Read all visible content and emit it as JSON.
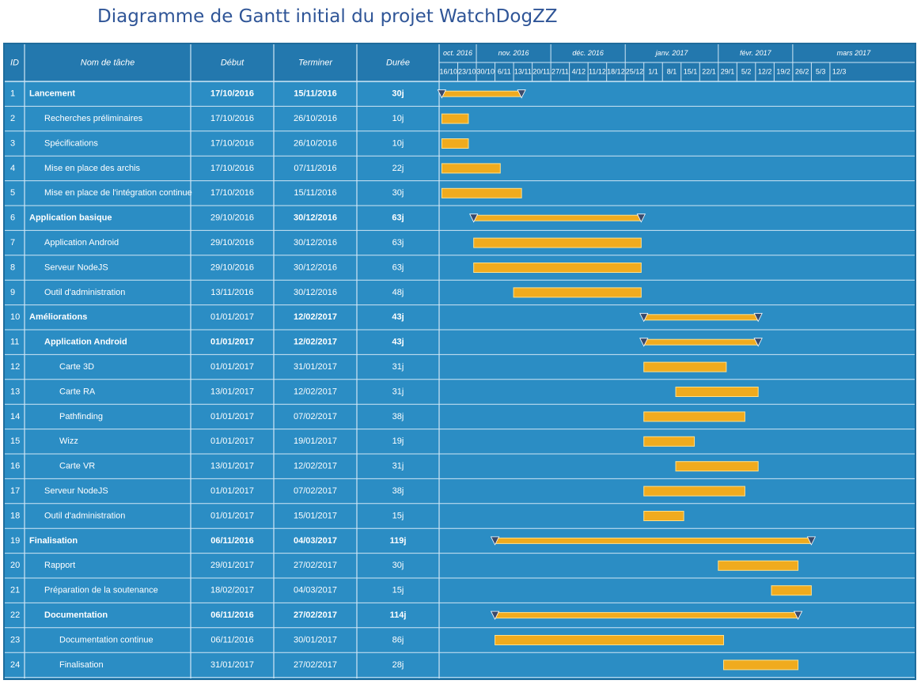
{
  "title": "Diagramme de Gantt initial du projet WatchDogZZ",
  "colors": {
    "background": "#2b8dc4",
    "header": "#2378ae",
    "gridline": "#cfe6f5",
    "text": "#ffffff",
    "bar": "#f0ab1e",
    "bar_border": "#ffe08a",
    "milestone": "#3b4a6b",
    "title": "#2f5597"
  },
  "columns": {
    "id": "ID",
    "name": "Nom de tâche",
    "start": "Début",
    "end": "Terminer",
    "duration": "Durée"
  },
  "chart_data": {
    "type": "gantt",
    "title": "Diagramme de Gantt initial du projet WatchDogZZ",
    "timeline_start": "2016-10-16",
    "timeline_end": "2017-03-19",
    "months": [
      {
        "label": "oct. 2016",
        "start": "2016-10-16"
      },
      {
        "label": "nov. 2016",
        "start": "2016-10-30"
      },
      {
        "label": "déc. 2016",
        "start": "2016-11-27"
      },
      {
        "label": "janv. 2017",
        "start": "2016-12-25"
      },
      {
        "label": "févr. 2017",
        "start": "2017-01-29"
      },
      {
        "label": "mars 2017",
        "start": "2017-02-26"
      }
    ],
    "week_ticks": [
      "16/10",
      "23/10",
      "30/10",
      "6/11",
      "13/11",
      "20/11",
      "27/11",
      "4/12",
      "11/12",
      "18/12",
      "25/12",
      "1/1",
      "8/1",
      "15/1",
      "22/1",
      "29/1",
      "5/2",
      "12/2",
      "19/2",
      "26/2",
      "5/3",
      "12/3"
    ],
    "tasks": [
      {
        "id": "1",
        "name": "Lancement",
        "start": "17/10/2016",
        "end": "15/11/2016",
        "duration": "30j",
        "level": 0,
        "summary": true,
        "bold_start": true
      },
      {
        "id": "2",
        "name": "Recherches préliminaires",
        "start": "17/10/2016",
        "end": "26/10/2016",
        "duration": "10j",
        "level": 1,
        "summary": false
      },
      {
        "id": "3",
        "name": "Spécifications",
        "start": "17/10/2016",
        "end": "26/10/2016",
        "duration": "10j",
        "level": 1,
        "summary": false
      },
      {
        "id": "4",
        "name": "Mise en place des archis",
        "start": "17/10/2016",
        "end": "07/11/2016",
        "duration": "22j",
        "level": 1,
        "summary": false
      },
      {
        "id": "5",
        "name": "Mise en place de l'intégration continue",
        "start": "17/10/2016",
        "end": "15/11/2016",
        "duration": "30j",
        "level": 1,
        "summary": false
      },
      {
        "id": "6",
        "name": "Application basique",
        "start": "29/10/2016",
        "end": "30/12/2016",
        "duration": "63j",
        "level": 0,
        "summary": true,
        "bold_start": false
      },
      {
        "id": "7",
        "name": "Application Android",
        "start": "29/10/2016",
        "end": "30/12/2016",
        "duration": "63j",
        "level": 1,
        "summary": false
      },
      {
        "id": "8",
        "name": "Serveur NodeJS",
        "start": "29/10/2016",
        "end": "30/12/2016",
        "duration": "63j",
        "level": 1,
        "summary": false
      },
      {
        "id": "9",
        "name": "Outil d'administration",
        "start": "13/11/2016",
        "end": "30/12/2016",
        "duration": "48j",
        "level": 1,
        "summary": false
      },
      {
        "id": "10",
        "name": "Améliorations",
        "start": "01/01/2017",
        "end": "12/02/2017",
        "duration": "43j",
        "level": 0,
        "summary": true,
        "bold_start": false
      },
      {
        "id": "11",
        "name": "Application Android",
        "start": "01/01/2017",
        "end": "12/02/2017",
        "duration": "43j",
        "level": 1,
        "summary": true,
        "bold_start": true
      },
      {
        "id": "12",
        "name": "Carte 3D",
        "start": "01/01/2017",
        "end": "31/01/2017",
        "duration": "31j",
        "level": 2,
        "summary": false
      },
      {
        "id": "13",
        "name": "Carte RA",
        "start": "13/01/2017",
        "end": "12/02/2017",
        "duration": "31j",
        "level": 2,
        "summary": false
      },
      {
        "id": "14",
        "name": "Pathfinding",
        "start": "01/01/2017",
        "end": "07/02/2017",
        "duration": "38j",
        "level": 2,
        "summary": false
      },
      {
        "id": "15",
        "name": "Wizz",
        "start": "01/01/2017",
        "end": "19/01/2017",
        "duration": "19j",
        "level": 2,
        "summary": false
      },
      {
        "id": "16",
        "name": "Carte VR",
        "start": "13/01/2017",
        "end": "12/02/2017",
        "duration": "31j",
        "level": 2,
        "summary": false
      },
      {
        "id": "17",
        "name": "Serveur NodeJS",
        "start": "01/01/2017",
        "end": "07/02/2017",
        "duration": "38j",
        "level": 1,
        "summary": false
      },
      {
        "id": "18",
        "name": "Outil d'administration",
        "start": "01/01/2017",
        "end": "15/01/2017",
        "duration": "15j",
        "level": 1,
        "summary": false
      },
      {
        "id": "19",
        "name": "Finalisation",
        "start": "06/11/2016",
        "end": "04/03/2017",
        "duration": "119j",
        "level": 0,
        "summary": true,
        "bold_start": true
      },
      {
        "id": "20",
        "name": "Rapport",
        "start": "29/01/2017",
        "end": "27/02/2017",
        "duration": "30j",
        "level": 1,
        "summary": false
      },
      {
        "id": "21",
        "name": "Préparation de la soutenance",
        "start": "18/02/2017",
        "end": "04/03/2017",
        "duration": "15j",
        "level": 1,
        "summary": false
      },
      {
        "id": "22",
        "name": "Documentation",
        "start": "06/11/2016",
        "end": "27/02/2017",
        "duration": "114j",
        "level": 1,
        "summary": true,
        "bold_start": true
      },
      {
        "id": "23",
        "name": "Documentation continue",
        "start": "06/11/2016",
        "end": "30/01/2017",
        "duration": "86j",
        "level": 2,
        "summary": false
      },
      {
        "id": "24",
        "name": "Finalisation",
        "start": "31/01/2017",
        "end": "27/02/2017",
        "duration": "28j",
        "level": 2,
        "summary": false
      }
    ]
  }
}
